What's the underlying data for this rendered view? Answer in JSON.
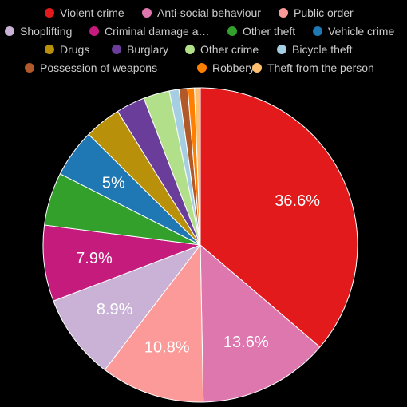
{
  "chart_data": {
    "type": "pie",
    "background": "#000000",
    "start_angle_deg": 0,
    "direction": "clockwise",
    "legend_position": "top",
    "slices": [
      {
        "name": "Violent crime",
        "value": 36.6,
        "color": "#e31a1c",
        "label": "36.6%"
      },
      {
        "name": "Anti-social behaviour",
        "value": 13.6,
        "color": "#de77ae",
        "label": "13.6%"
      },
      {
        "name": "Public order",
        "value": 10.8,
        "color": "#fb9a99",
        "label": "10.8%"
      },
      {
        "name": "Shoplifting",
        "value": 8.9,
        "color": "#c9b2d6",
        "label": "8.9%"
      },
      {
        "name": "Criminal damage a…",
        "value": 7.9,
        "color": "#c51b7d",
        "label": "7.9%"
      },
      {
        "name": "Other theft",
        "value": 5.5,
        "color": "#33a02c",
        "label": ""
      },
      {
        "name": "Vehicle crime",
        "value": 5.0,
        "color": "#1f78b4",
        "label": "5%"
      },
      {
        "name": "Drugs",
        "value": 3.8,
        "color": "#b8900a",
        "label": ""
      },
      {
        "name": "Burglary",
        "value": 3.0,
        "color": "#6a3d9a",
        "label": ""
      },
      {
        "name": "Other crime",
        "value": 2.7,
        "color": "#b2df8a",
        "label": ""
      },
      {
        "name": "Bicycle theft",
        "value": 1.0,
        "color": "#a6cee3",
        "label": ""
      },
      {
        "name": "Possession of weapons",
        "value": 0.9,
        "color": "#b15928",
        "label": ""
      },
      {
        "name": "Robbery",
        "value": 0.7,
        "color": "#ff7f00",
        "label": ""
      },
      {
        "name": "Theft from the person",
        "value": 0.6,
        "color": "#fdbf6f",
        "label": ""
      }
    ]
  }
}
